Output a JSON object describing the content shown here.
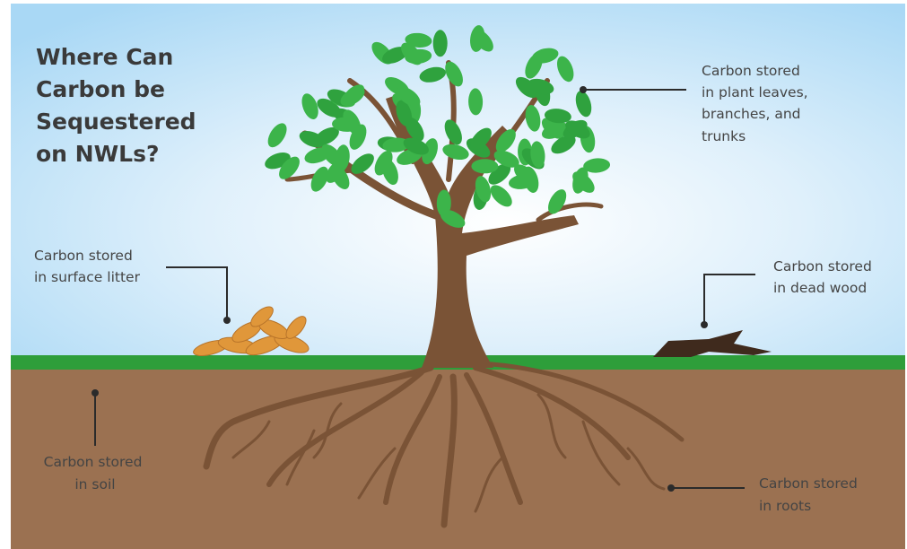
{
  "title": [
    "Where Can",
    "Carbon be",
    "Sequestered",
    "on NWLs?"
  ],
  "callouts": {
    "leaves": [
      "Carbon stored",
      "in plant leaves,",
      "branches, and",
      "trunks"
    ],
    "litter": [
      "Carbon stored",
      "in surface litter"
    ],
    "dead_wood": [
      "Carbon stored",
      "in dead wood"
    ],
    "soil": [
      "Carbon stored",
      "in soil"
    ],
    "roots": [
      "Carbon stored",
      "in roots"
    ]
  }
}
